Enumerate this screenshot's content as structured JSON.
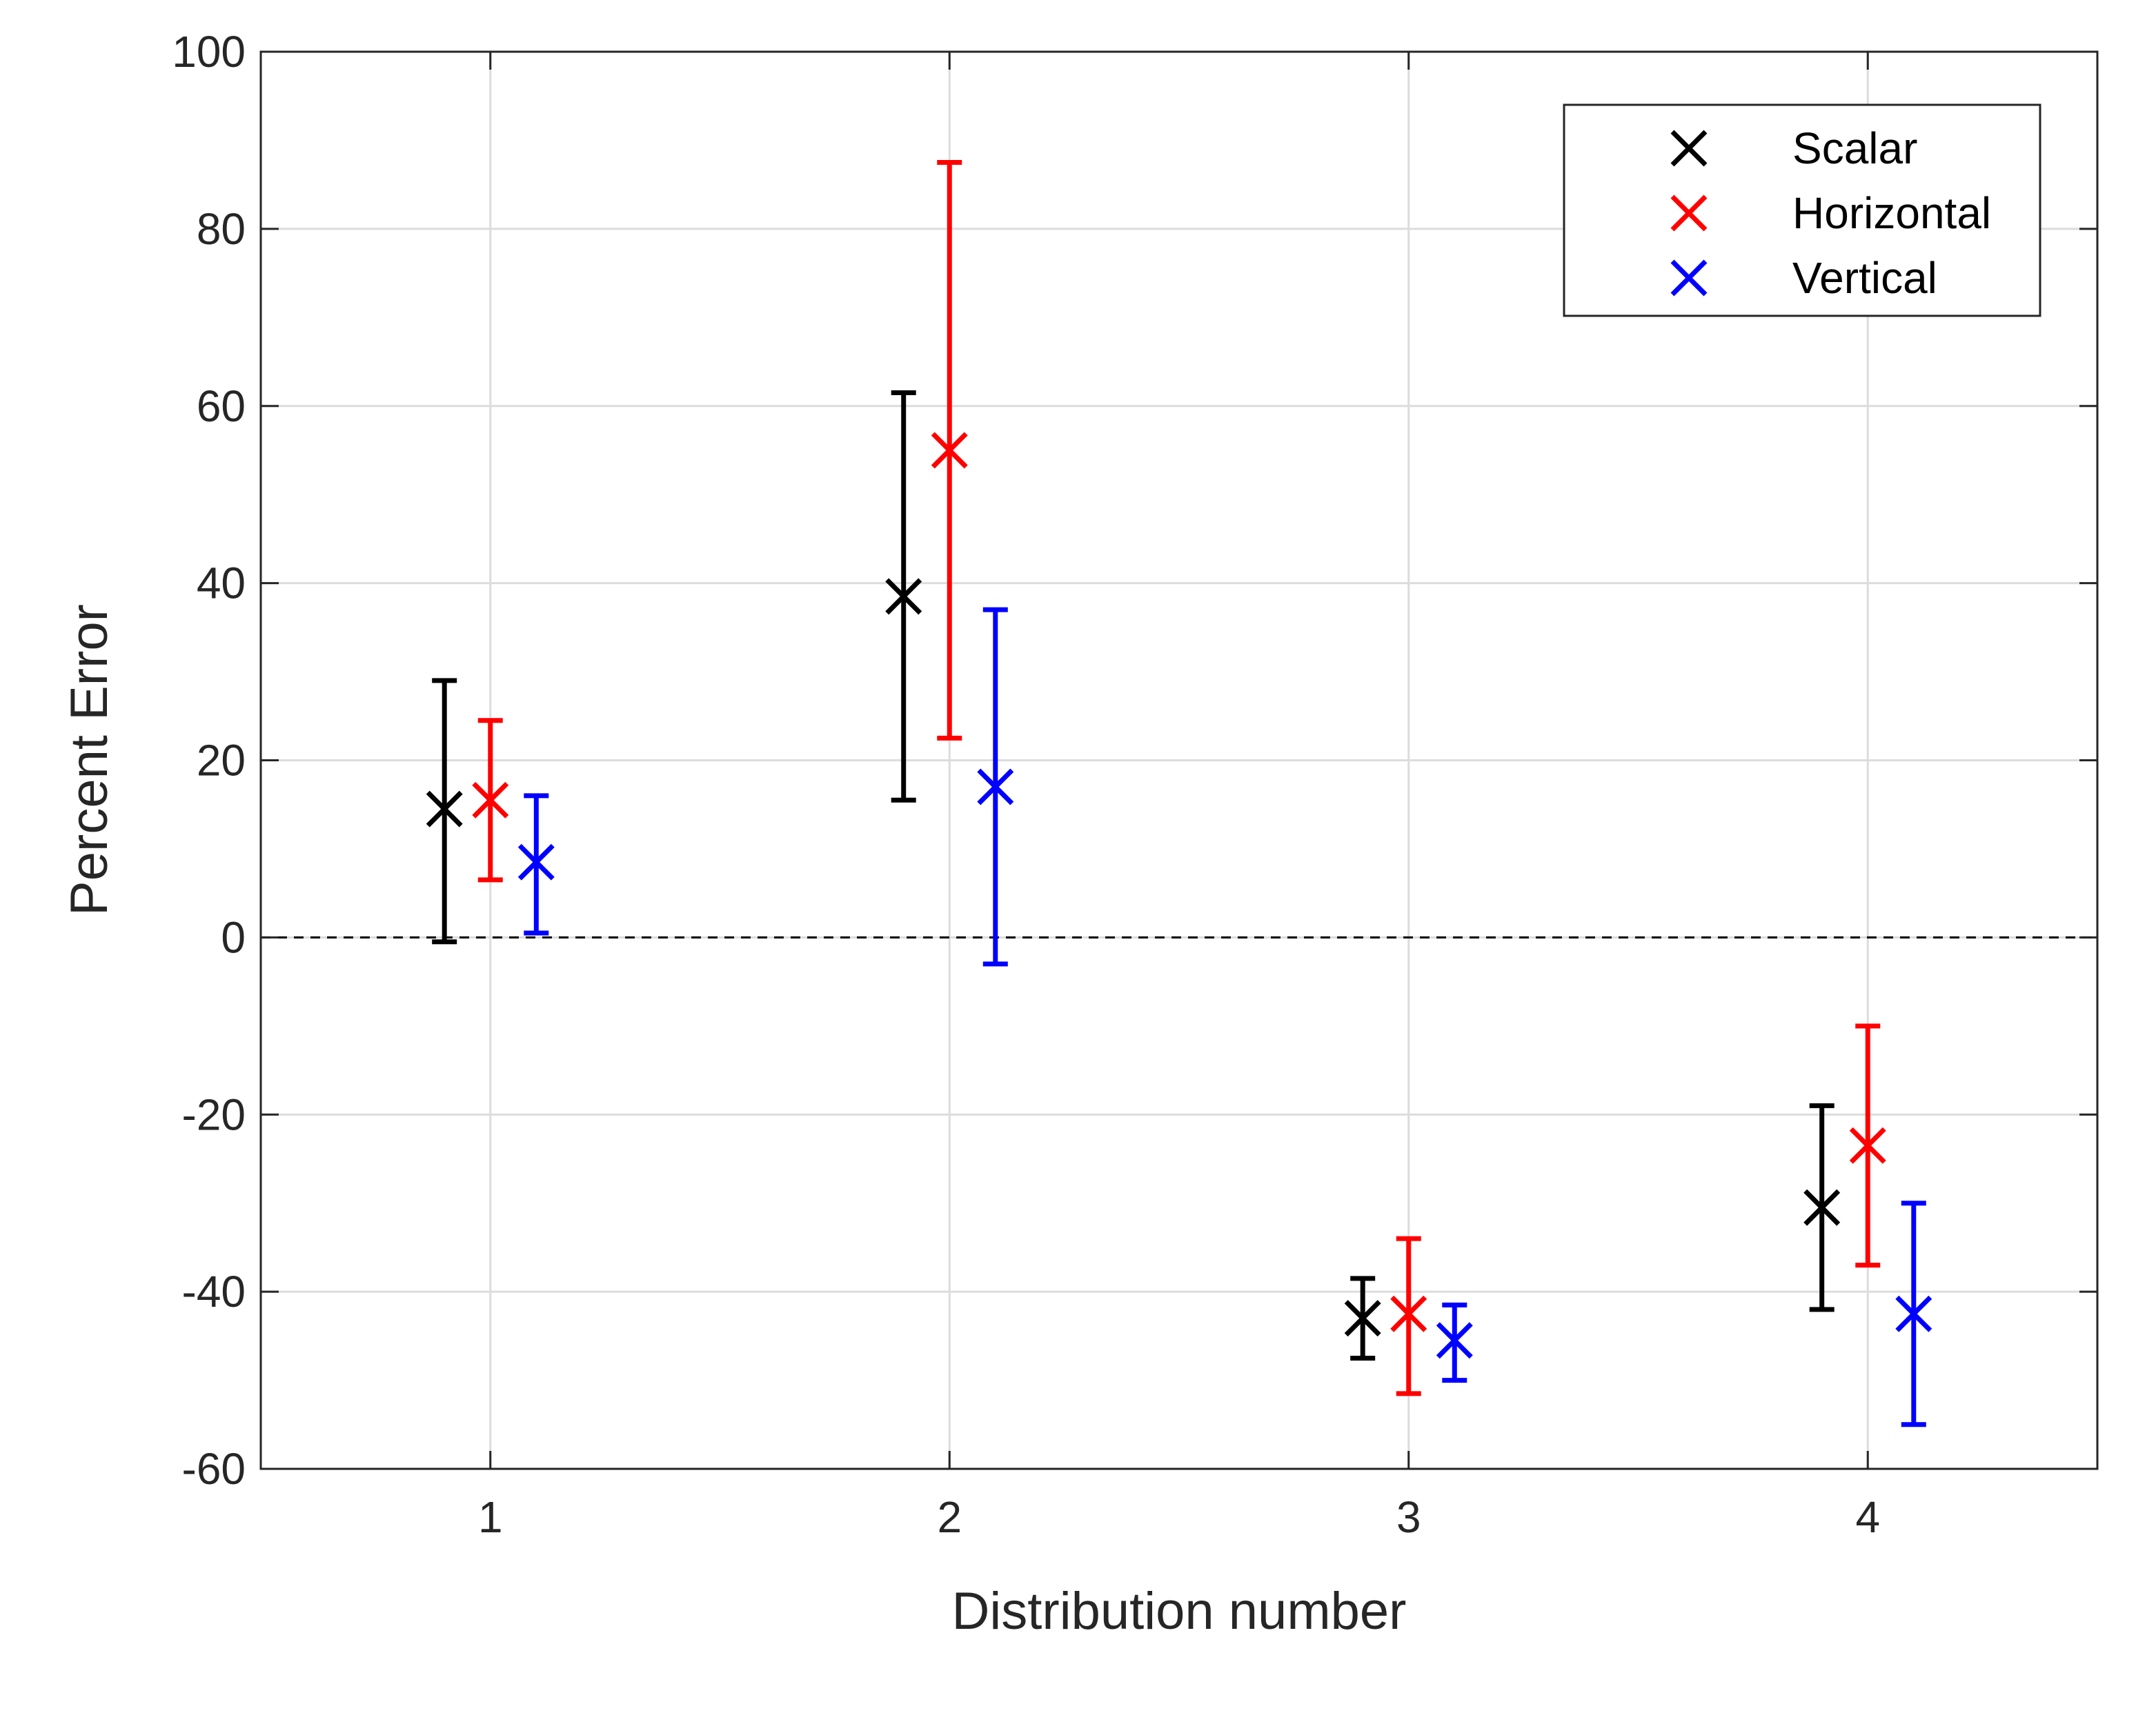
{
  "chart_data": {
    "type": "scatter",
    "title": "",
    "xlabel": "Distribution number",
    "ylabel": "Percent Error",
    "xlim": [
      0.5,
      4.5
    ],
    "ylim": [
      -60,
      100
    ],
    "xticks": [
      1,
      2,
      3,
      4
    ],
    "xtick_labels": [
      "1",
      "2",
      "3",
      "4"
    ],
    "yticks": [
      -60,
      -40,
      -20,
      0,
      20,
      40,
      60,
      80,
      100
    ],
    "ytick_labels": [
      "-60",
      "-40",
      "-20",
      "0",
      "20",
      "40",
      "60",
      "80",
      "100"
    ],
    "grid": true,
    "reference_line": {
      "y": 0,
      "style": "dashed"
    },
    "legend": {
      "placement": "top-right"
    },
    "series": [
      {
        "name": "Scalar",
        "color": "#000000",
        "marker": "x",
        "points": [
          {
            "x": 0.9,
            "y": 14.5,
            "low": -0.5,
            "high": 29
          },
          {
            "x": 1.9,
            "y": 38.5,
            "low": 15.5,
            "high": 61.5
          },
          {
            "x": 2.9,
            "y": -43,
            "low": -47.5,
            "high": -38.5
          },
          {
            "x": 3.9,
            "y": -30.5,
            "low": -42,
            "high": -19
          }
        ]
      },
      {
        "name": "Horizontal",
        "color": "#ff0000",
        "marker": "x",
        "points": [
          {
            "x": 1.0,
            "y": 15.5,
            "low": 6.5,
            "high": 24.5
          },
          {
            "x": 2.0,
            "y": 55,
            "low": 22.5,
            "high": 87.5
          },
          {
            "x": 3.0,
            "y": -42.5,
            "low": -51.5,
            "high": -34
          },
          {
            "x": 4.0,
            "y": -23.5,
            "low": -37,
            "high": -10
          }
        ]
      },
      {
        "name": "Vertical",
        "color": "#0000ff",
        "marker": "x",
        "points": [
          {
            "x": 1.1,
            "y": 8.5,
            "low": 0.5,
            "high": 16
          },
          {
            "x": 2.1,
            "y": 17,
            "low": -3,
            "high": 37
          },
          {
            "x": 3.1,
            "y": -45.5,
            "low": -50,
            "high": -41.5
          },
          {
            "x": 4.1,
            "y": -42.5,
            "low": -55,
            "high": -30
          }
        ]
      }
    ]
  }
}
